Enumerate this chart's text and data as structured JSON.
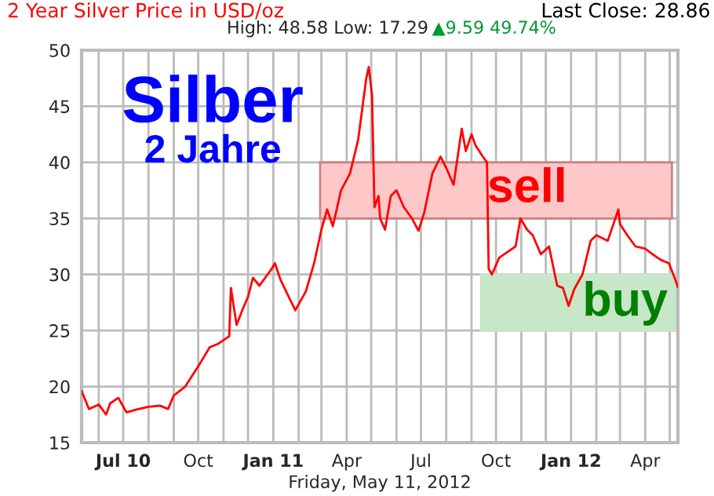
{
  "chart_data": {
    "type": "line",
    "title": "2 Year Silver Price in USD/oz",
    "subtitle": "High: 48.58 Low: 17.29",
    "xlabel": "Friday, May 11, 2012",
    "annotations": [
      "Silber",
      "2 Jahre",
      "Last Close: 28.86",
      "▲9.59 49.74%"
    ],
    "x": [
      "2010-05-11",
      "2010-05-20",
      "2010-06-01",
      "2010-06-10",
      "2010-06-15",
      "2010-06-25",
      "2010-07-05",
      "2010-07-20",
      "2010-08-01",
      "2010-08-15",
      "2010-08-25",
      "2010-09-01",
      "2010-09-15",
      "2010-10-01",
      "2010-10-15",
      "2010-10-25",
      "2010-11-08",
      "2010-11-10",
      "2010-11-17",
      "2010-11-25",
      "2010-12-01",
      "2010-12-07",
      "2010-12-15",
      "2010-12-30",
      "2011-01-03",
      "2011-01-10",
      "2011-01-20",
      "2011-01-28",
      "2011-02-10",
      "2011-02-20",
      "2011-03-01",
      "2011-03-08",
      "2011-03-15",
      "2011-03-25",
      "2011-04-05",
      "2011-04-15",
      "2011-04-25",
      "2011-04-28",
      "2011-05-02",
      "2011-05-05",
      "2011-05-10",
      "2011-05-12",
      "2011-05-18",
      "2011-05-25",
      "2011-06-01",
      "2011-06-10",
      "2011-06-20",
      "2011-06-28",
      "2011-07-05",
      "2011-07-15",
      "2011-07-25",
      "2011-08-01",
      "2011-08-10",
      "2011-08-20",
      "2011-08-25",
      "2011-09-01",
      "2011-09-06",
      "2011-09-15",
      "2011-09-20",
      "2011-09-22",
      "2011-09-26",
      "2011-10-05",
      "2011-10-15",
      "2011-10-25",
      "2011-10-31",
      "2011-11-08",
      "2011-11-15",
      "2011-11-25",
      "2011-12-05",
      "2011-12-15",
      "2011-12-22",
      "2011-12-29",
      "2012-01-05",
      "2012-01-15",
      "2012-01-25",
      "2012-02-01",
      "2012-02-15",
      "2012-02-28",
      "2012-03-01",
      "2012-03-10",
      "2012-03-20",
      "2012-04-01",
      "2012-04-10",
      "2012-04-20",
      "2012-04-30",
      "2012-05-08",
      "2012-05-11"
    ],
    "series": [
      {
        "color": "#ff0000",
        "values": [
          19.6,
          18.0,
          18.4,
          17.5,
          18.5,
          19.0,
          17.7,
          18.0,
          18.2,
          18.3,
          18.0,
          19.2,
          20.0,
          21.8,
          23.5,
          23.8,
          24.5,
          28.8,
          25.5,
          27.0,
          28.0,
          29.7,
          29.0,
          30.5,
          31.0,
          29.5,
          28.0,
          26.8,
          28.5,
          31.0,
          34.0,
          35.8,
          34.3,
          37.5,
          39.0,
          42.0,
          47.5,
          48.5,
          46.0,
          36.0,
          37.0,
          35.0,
          34.0,
          37.0,
          37.5,
          36.0,
          35.0,
          33.9,
          35.5,
          39.0,
          40.5,
          39.5,
          38.0,
          43.0,
          41.0,
          42.5,
          41.5,
          40.5,
          40.0,
          30.5,
          30.0,
          31.5,
          32.0,
          32.5,
          35.0,
          34.0,
          33.5,
          31.8,
          32.5,
          29.0,
          28.8,
          27.2,
          28.7,
          30.0,
          33.0,
          33.5,
          33.0,
          35.8,
          34.5,
          33.5,
          32.5,
          32.3,
          31.8,
          31.3,
          31.0,
          29.5,
          28.86
        ]
      }
    ],
    "xlim": [
      "2010-05-11",
      "2012-05-11"
    ],
    "xticks": [
      {
        "value": "2010-06-01",
        "label": null
      },
      {
        "value": "2010-07-01",
        "label": "Jul 10"
      },
      {
        "value": "2010-08-01",
        "label": null
      },
      {
        "value": "2010-09-01",
        "label": null
      },
      {
        "value": "2010-10-01",
        "label": "Oct"
      },
      {
        "value": "2010-11-01",
        "label": null
      },
      {
        "value": "2010-12-01",
        "label": null
      },
      {
        "value": "2011-01-01",
        "label": "Jan 11"
      },
      {
        "value": "2011-02-01",
        "label": null
      },
      {
        "value": "2011-03-01",
        "label": null
      },
      {
        "value": "2011-04-01",
        "label": "Apr"
      },
      {
        "value": "2011-05-01",
        "label": null
      },
      {
        "value": "2011-06-01",
        "label": null
      },
      {
        "value": "2011-07-01",
        "label": "Jul"
      },
      {
        "value": "2011-08-01",
        "label": null
      },
      {
        "value": "2011-09-01",
        "label": null
      },
      {
        "value": "2011-10-01",
        "label": "Oct"
      },
      {
        "value": "2011-11-01",
        "label": null
      },
      {
        "value": "2011-12-01",
        "label": null
      },
      {
        "value": "2012-01-01",
        "label": "Jan 12"
      },
      {
        "value": "2012-02-01",
        "label": null
      },
      {
        "value": "2012-03-01",
        "label": null
      },
      {
        "value": "2012-04-01",
        "label": "Apr"
      },
      {
        "value": "2012-05-01",
        "label": null
      }
    ],
    "ylim": [
      15,
      50
    ],
    "yticks": [
      15,
      20,
      25,
      30,
      35,
      40,
      45,
      50
    ],
    "grid": true,
    "bands": [
      {
        "axis": "y",
        "from": 35,
        "to": 40,
        "label": "sell",
        "color": "#ffc8c8"
      },
      {
        "axis": "y",
        "from": 25,
        "to": 30,
        "label": "buy",
        "color": "#c8e6c8"
      }
    ]
  }
}
